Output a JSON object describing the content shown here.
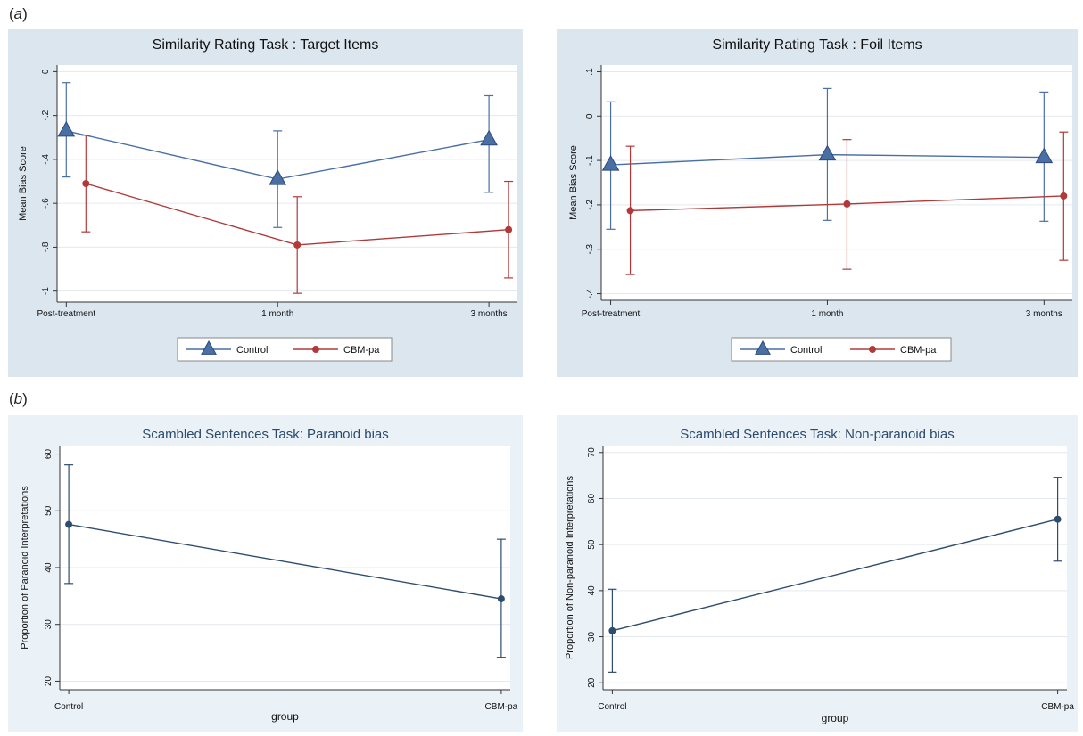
{
  "labels": {
    "a": "a",
    "b": "b"
  },
  "chart_data": [
    {
      "type": "line",
      "title": "Similarity Rating Task : Target Items",
      "ylabel": "Mean Bias Score",
      "xlabel": "",
      "categories": [
        "Post-treatment",
        "1 month",
        "3 months"
      ],
      "yticks": [
        "0",
        "-.2",
        "-.4",
        "-.6",
        "-.8",
        "-1"
      ],
      "ytick_values": [
        0,
        -0.2,
        -0.4,
        -0.6,
        -0.8,
        -1
      ],
      "ylim": [
        -1.05,
        0.03
      ],
      "grid": true,
      "legend": "bottom",
      "series": [
        {
          "name": "Control",
          "marker": "triangle",
          "color": "#4a6fa5",
          "values": [
            -0.27,
            -0.49,
            -0.31
          ],
          "err_low": [
            -0.48,
            -0.71,
            -0.55
          ],
          "err_high": [
            -0.05,
            -0.27,
            -0.11
          ]
        },
        {
          "name": "CBM-pa",
          "marker": "circle",
          "color": "#b03a3a",
          "values": [
            -0.51,
            -0.79,
            -0.72
          ],
          "err_low": [
            -0.73,
            -1.01,
            -0.94
          ],
          "err_high": [
            -0.29,
            -0.57,
            -0.5
          ]
        }
      ]
    },
    {
      "type": "line",
      "title": "Similarity Rating Task : Foil Items",
      "ylabel": "Mean Bias Score",
      "xlabel": "",
      "categories": [
        "Post-treatment",
        "1 month",
        "3 months"
      ],
      "yticks": [
        ".1",
        "0",
        "-.1",
        "-.2",
        "-.3",
        "-.4"
      ],
      "ytick_values": [
        0.1,
        0,
        -0.1,
        -0.2,
        -0.3,
        -0.4
      ],
      "ylim": [
        -0.415,
        0.115
      ],
      "grid": true,
      "legend": "bottom",
      "series": [
        {
          "name": "Control",
          "marker": "triangle",
          "color": "#4a6fa5",
          "values": [
            -0.11,
            -0.087,
            -0.093
          ],
          "err_low": [
            -0.255,
            -0.235,
            -0.237
          ],
          "err_high": [
            0.032,
            0.062,
            0.054
          ]
        },
        {
          "name": "CBM-pa",
          "marker": "circle",
          "color": "#b03a3a",
          "values": [
            -0.213,
            -0.198,
            -0.18
          ],
          "err_low": [
            -0.357,
            -0.345,
            -0.325
          ],
          "err_high": [
            -0.068,
            -0.053,
            -0.036
          ]
        }
      ]
    },
    {
      "type": "line",
      "title": "Scambled Sentences Task: Paranoid bias",
      "ylabel": "Proportion of Paranoid Interpretations",
      "xlabel": "group",
      "categories": [
        "Control",
        "CBM-pa"
      ],
      "yticks": [
        "60",
        "50",
        "40",
        "30",
        "20"
      ],
      "ytick_values": [
        60,
        50,
        40,
        30,
        20
      ],
      "ylim": [
        18.5,
        61.5
      ],
      "grid": true,
      "legend": "none",
      "series": [
        {
          "name": "",
          "marker": "circle",
          "color": "#2e4d6e",
          "values": [
            47.6,
            34.5
          ],
          "err_low": [
            37.2,
            24.2
          ],
          "err_high": [
            58.1,
            45.0
          ]
        }
      ]
    },
    {
      "type": "line",
      "title": "Scambled Sentences Task: Non-paranoid bias",
      "ylabel": "Proportion of Non-paranoid Interpretations",
      "xlabel": "group",
      "categories": [
        "Control",
        "CBM-pa"
      ],
      "yticks": [
        "70",
        "60",
        "50",
        "40",
        "30",
        "20"
      ],
      "ytick_values": [
        70,
        60,
        50,
        40,
        30,
        20
      ],
      "ylim": [
        18.5,
        71.5
      ],
      "grid": true,
      "legend": "none",
      "series": [
        {
          "name": "",
          "marker": "circle",
          "color": "#2e4d6e",
          "values": [
            31.3,
            55.5
          ],
          "err_low": [
            22.3,
            46.4
          ],
          "err_high": [
            40.3,
            64.6
          ]
        }
      ]
    }
  ]
}
